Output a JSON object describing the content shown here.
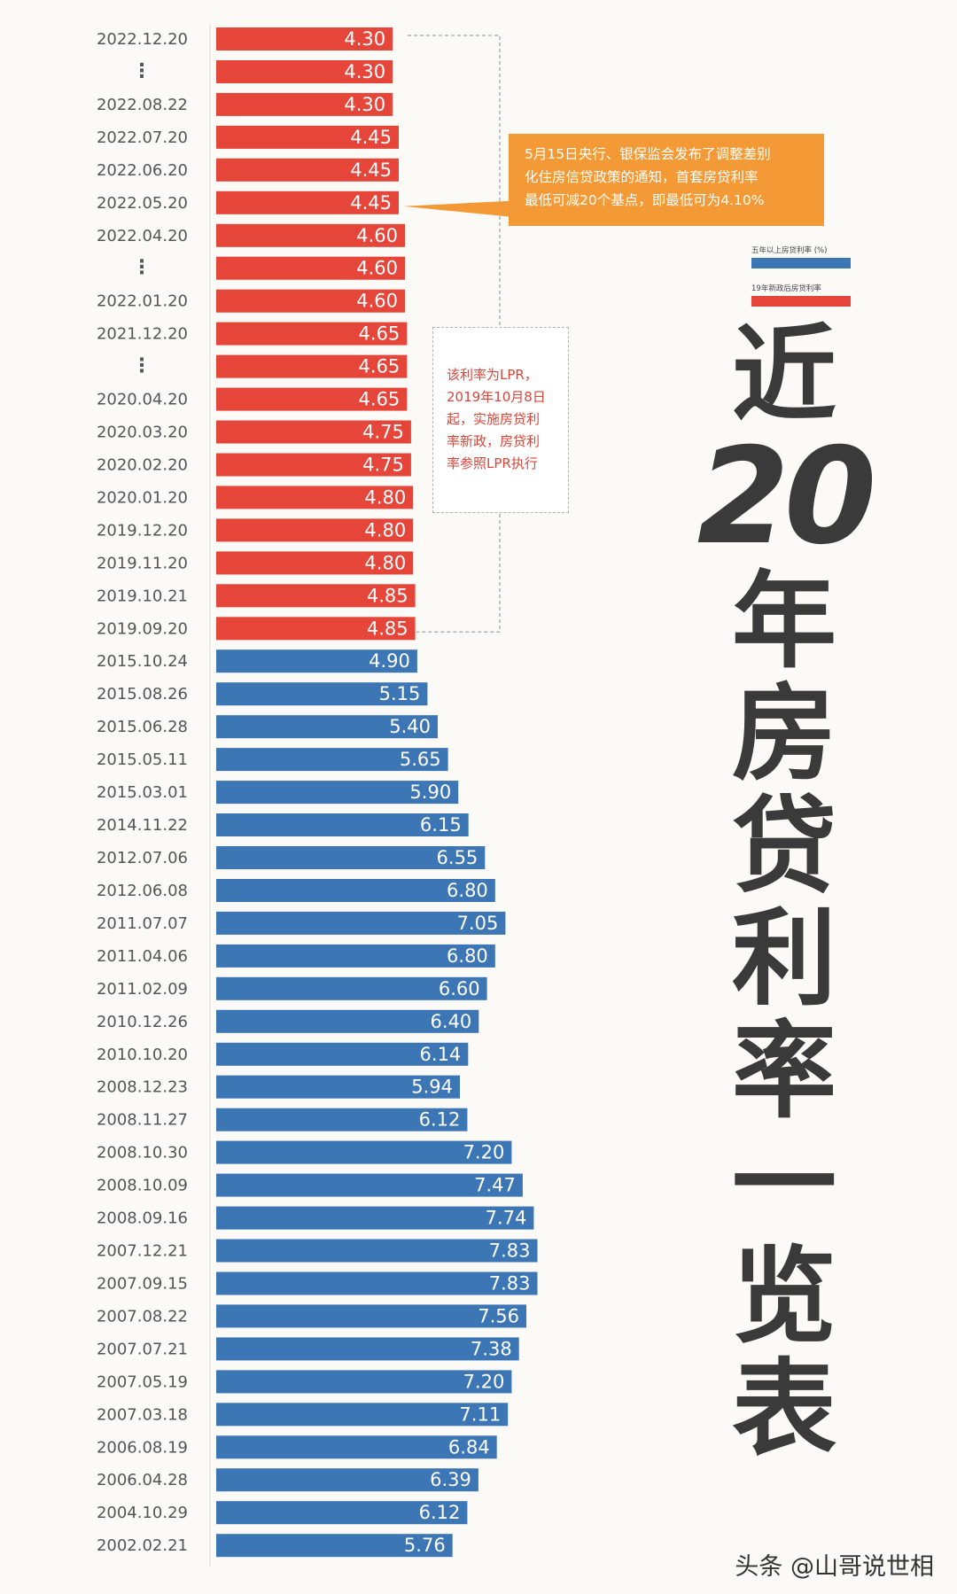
{
  "chart_data": {
    "type": "bar",
    "orientation": "horizontal",
    "title": "近20年房贷利率一览表",
    "legend": [
      {
        "name": "五年以上房贷利率 (%)",
        "color": "#3d76b5"
      },
      {
        "name": "19年新政后房贷利率",
        "color": "#e6453a"
      }
    ],
    "rows": [
      {
        "label": "2022.12.20",
        "value": 4.3,
        "display": "4.30",
        "policy": "lpr"
      },
      {
        "label": "⋮",
        "value": 4.3,
        "display": "4.30",
        "policy": "lpr"
      },
      {
        "label": "2022.08.22",
        "value": 4.3,
        "display": "4.30",
        "policy": "lpr"
      },
      {
        "label": "2022.07.20",
        "value": 4.45,
        "display": "4.45",
        "policy": "lpr"
      },
      {
        "label": "2022.06.20",
        "value": 4.45,
        "display": "4.45",
        "policy": "lpr"
      },
      {
        "label": "2022.05.20",
        "value": 4.45,
        "display": "4.45",
        "policy": "lpr"
      },
      {
        "label": "2022.04.20",
        "value": 4.6,
        "display": "4.60",
        "policy": "lpr"
      },
      {
        "label": "⋮",
        "value": 4.6,
        "display": "4.60",
        "policy": "lpr"
      },
      {
        "label": "2022.01.20",
        "value": 4.6,
        "display": "4.60",
        "policy": "lpr"
      },
      {
        "label": "2021.12.20",
        "value": 4.65,
        "display": "4.65",
        "policy": "lpr"
      },
      {
        "label": "⋮",
        "value": 4.65,
        "display": "4.65",
        "policy": "lpr"
      },
      {
        "label": "2020.04.20",
        "value": 4.65,
        "display": "4.65",
        "policy": "lpr"
      },
      {
        "label": "2020.03.20",
        "value": 4.75,
        "display": "4.75",
        "policy": "lpr"
      },
      {
        "label": "2020.02.20",
        "value": 4.75,
        "display": "4.75",
        "policy": "lpr"
      },
      {
        "label": "2020.01.20",
        "value": 4.8,
        "display": "4.80",
        "policy": "lpr"
      },
      {
        "label": "2019.12.20",
        "value": 4.8,
        "display": "4.80",
        "policy": "lpr"
      },
      {
        "label": "2019.11.20",
        "value": 4.8,
        "display": "4.80",
        "policy": "lpr"
      },
      {
        "label": "2019.10.21",
        "value": 4.85,
        "display": "4.85",
        "policy": "lpr"
      },
      {
        "label": "2019.09.20",
        "value": 4.85,
        "display": "4.85",
        "policy": "lpr"
      },
      {
        "label": "2015.10.24",
        "value": 4.9,
        "display": "4.90",
        "policy": "benchmark"
      },
      {
        "label": "2015.08.26",
        "value": 5.15,
        "display": "5.15",
        "policy": "benchmark"
      },
      {
        "label": "2015.06.28",
        "value": 5.4,
        "display": "5.40",
        "policy": "benchmark"
      },
      {
        "label": "2015.05.11",
        "value": 5.65,
        "display": "5.65",
        "policy": "benchmark"
      },
      {
        "label": "2015.03.01",
        "value": 5.9,
        "display": "5.90",
        "policy": "benchmark"
      },
      {
        "label": "2014.11.22",
        "value": 6.15,
        "display": "6.15",
        "policy": "benchmark"
      },
      {
        "label": "2012.07.06",
        "value": 6.55,
        "display": "6.55",
        "policy": "benchmark"
      },
      {
        "label": "2012.06.08",
        "value": 6.8,
        "display": "6.80",
        "policy": "benchmark"
      },
      {
        "label": "2011.07.07",
        "value": 7.05,
        "display": "7.05",
        "policy": "benchmark"
      },
      {
        "label": "2011.04.06",
        "value": 6.8,
        "display": "6.80",
        "policy": "benchmark"
      },
      {
        "label": "2011.02.09",
        "value": 6.6,
        "display": "6.60",
        "policy": "benchmark"
      },
      {
        "label": "2010.12.26",
        "value": 6.4,
        "display": "6.40",
        "policy": "benchmark"
      },
      {
        "label": "2010.10.20",
        "value": 6.14,
        "display": "6.14",
        "policy": "benchmark"
      },
      {
        "label": "2008.12.23",
        "value": 5.94,
        "display": "5.94",
        "policy": "benchmark"
      },
      {
        "label": "2008.11.27",
        "value": 6.12,
        "display": "6.12",
        "policy": "benchmark"
      },
      {
        "label": "2008.10.30",
        "value": 7.2,
        "display": "7.20",
        "policy": "benchmark"
      },
      {
        "label": "2008.10.09",
        "value": 7.47,
        "display": "7.47",
        "policy": "benchmark"
      },
      {
        "label": "2008.09.16",
        "value": 7.74,
        "display": "7.74",
        "policy": "benchmark"
      },
      {
        "label": "2007.12.21",
        "value": 7.83,
        "display": "7.83",
        "policy": "benchmark"
      },
      {
        "label": "2007.09.15",
        "value": 7.83,
        "display": "7.83",
        "policy": "benchmark"
      },
      {
        "label": "2007.08.22",
        "value": 7.56,
        "display": "7.56",
        "policy": "benchmark"
      },
      {
        "label": "2007.07.21",
        "value": 7.38,
        "display": "7.38",
        "policy": "benchmark"
      },
      {
        "label": "2007.05.19",
        "value": 7.2,
        "display": "7.20",
        "policy": "benchmark"
      },
      {
        "label": "2007.03.18",
        "value": 7.11,
        "display": "7.11",
        "policy": "benchmark"
      },
      {
        "label": "2006.08.19",
        "value": 6.84,
        "display": "6.84",
        "policy": "benchmark"
      },
      {
        "label": "2006.04.28",
        "value": 6.39,
        "display": "6.39",
        "policy": "benchmark"
      },
      {
        "label": "2004.10.29",
        "value": 6.12,
        "display": "6.12",
        "policy": "benchmark"
      },
      {
        "label": "2002.02.21",
        "value": 5.76,
        "display": "5.76",
        "policy": "benchmark"
      }
    ],
    "grid": false
  },
  "callouts": {
    "may_policy": [
      "5月15日央行、银保监会发布了调整差别",
      "化住房信贷政策的通知，首套房贷利率",
      "最低可减20个基点，即最低可为4.10%"
    ],
    "lpr_note": [
      "该利率为LPR，",
      "2019年10月8日",
      "起，实施房贷利",
      "率新政，房贷利",
      "率参照LPR执行"
    ]
  },
  "title_parts": {
    "c1": "近",
    "num": "20",
    "c2": "年",
    "c3": "房",
    "c4": "贷",
    "c5": "利",
    "c6": "率",
    "c7": "一",
    "c8": "览",
    "c9": "表"
  },
  "credit": "头条 @山哥说世相",
  "colors": {
    "lpr_bar": "#e6453a",
    "benchmark_bar": "#3d76b5",
    "callout": "#f39a36",
    "note_text": "#d8463a"
  }
}
